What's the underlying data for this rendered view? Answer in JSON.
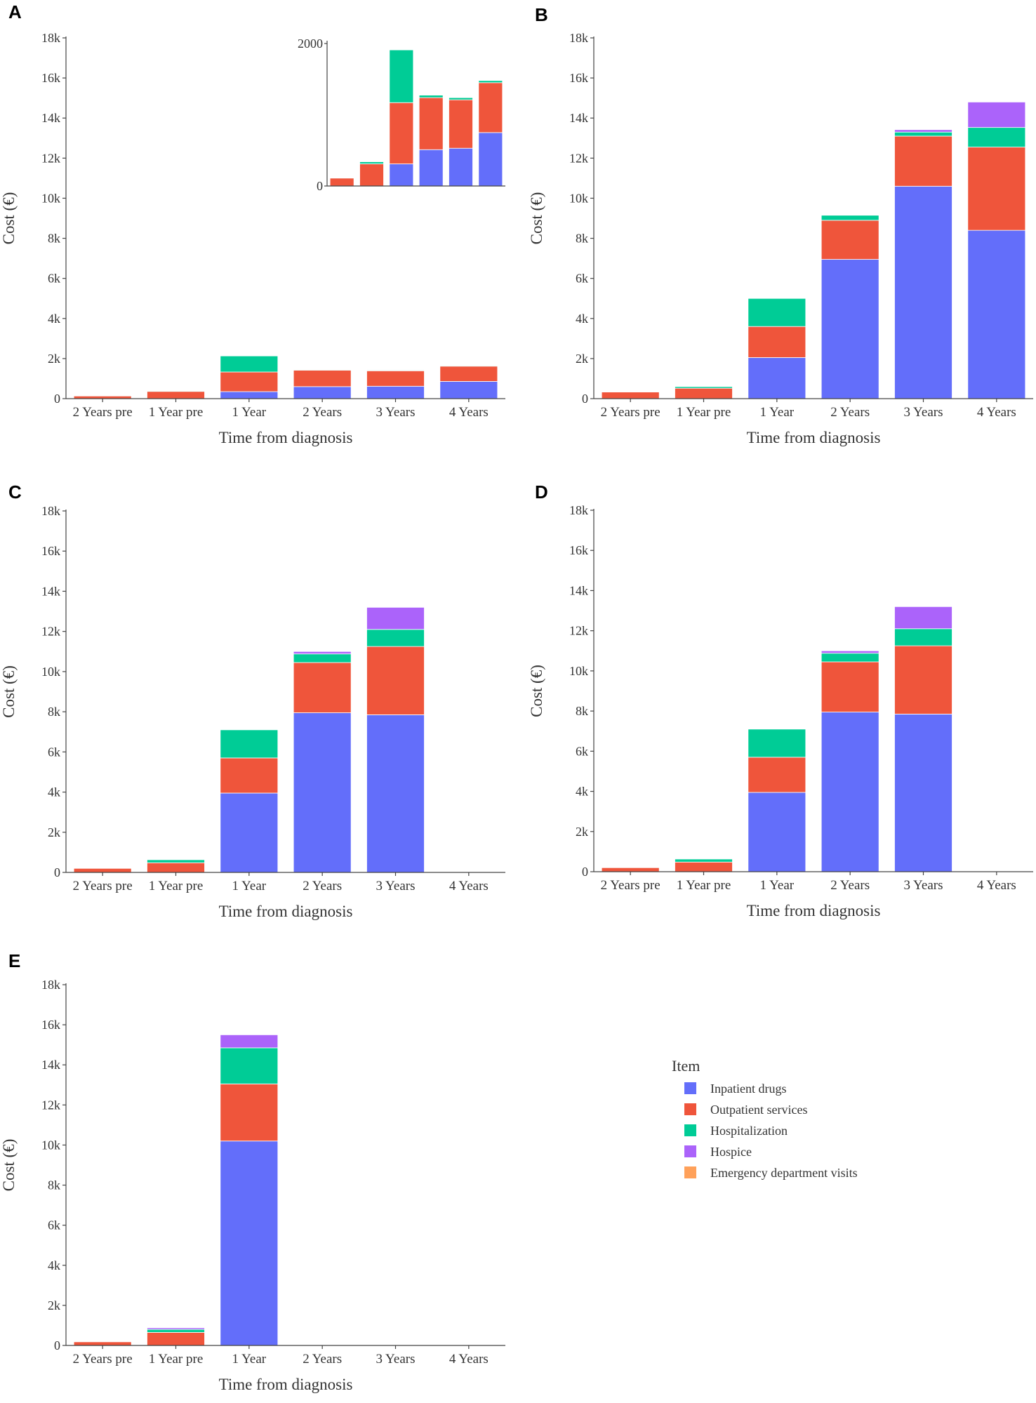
{
  "chart_data": [
    {
      "panel": "A",
      "type": "bar",
      "stacked": true,
      "categories": [
        "2 Years pre",
        "1 Year pre",
        "1 Year",
        "2 Years",
        "3 Years",
        "4 Years"
      ],
      "series": [
        {
          "name": "Inpatient drugs",
          "values": [
            0,
            0,
            350,
            600,
            620,
            860
          ]
        },
        {
          "name": "Outpatient services",
          "values": [
            130,
            360,
            980,
            820,
            770,
            760
          ]
        },
        {
          "name": "Hospitalization",
          "values": [
            0,
            30,
            800,
            30,
            30,
            30
          ]
        },
        {
          "name": "Hospice",
          "values": [
            0,
            0,
            0,
            0,
            0,
            0
          ]
        },
        {
          "name": "Emergency department visits",
          "values": [
            0,
            0,
            0,
            0,
            0,
            0
          ]
        }
      ],
      "xlabel": "Time from diagnosis",
      "ylabel": "Cost (€)",
      "ylim": [
        0,
        18000
      ],
      "yticks": [
        "0",
        "2k",
        "4k",
        "6k",
        "8k",
        "10k",
        "12k",
        "14k",
        "16k",
        "18k"
      ],
      "inset": {
        "ylim": [
          0,
          2000
        ],
        "yticks": [
          "0",
          "2000"
        ],
        "categories": [
          "2 Years pre",
          "1 Year pre",
          "1 Year",
          "2 Years",
          "3 Years",
          "4 Years"
        ],
        "series": [
          {
            "name": "Inpatient drugs",
            "values": [
              0,
              0,
              310,
              510,
              530,
              750
            ]
          },
          {
            "name": "Outpatient services",
            "values": [
              110,
              310,
              860,
              730,
              680,
              700
            ]
          },
          {
            "name": "Hospitalization",
            "values": [
              0,
              30,
              740,
              35,
              30,
              30
            ]
          },
          {
            "name": "Hospice",
            "values": [
              0,
              0,
              0,
              0,
              0,
              0
            ]
          },
          {
            "name": "Emergency department visits",
            "values": [
              0,
              0,
              0,
              0,
              0,
              0
            ]
          }
        ]
      }
    },
    {
      "panel": "B",
      "type": "bar",
      "stacked": true,
      "categories": [
        "2 Years pre",
        "1 Year pre",
        "1 Year",
        "2 Years",
        "3 Years",
        "4 Years"
      ],
      "series": [
        {
          "name": "Inpatient drugs",
          "values": [
            0,
            0,
            2050,
            6950,
            10600,
            8400
          ]
        },
        {
          "name": "Outpatient services",
          "values": [
            330,
            520,
            1550,
            1950,
            2500,
            4150
          ]
        },
        {
          "name": "Hospitalization",
          "values": [
            0,
            80,
            1400,
            250,
            200,
            980
          ]
        },
        {
          "name": "Hospice",
          "values": [
            0,
            0,
            0,
            0,
            120,
            1270
          ]
        },
        {
          "name": "Emergency department visits",
          "values": [
            0,
            0,
            0,
            0,
            0,
            0
          ]
        }
      ],
      "xlabel": "Time from diagnosis",
      "ylabel": "Cost (€)",
      "ylim": [
        0,
        18000
      ],
      "yticks": [
        "0",
        "2k",
        "4k",
        "6k",
        "8k",
        "10k",
        "12k",
        "14k",
        "16k",
        "18k"
      ]
    },
    {
      "panel": "C",
      "type": "bar",
      "stacked": true,
      "categories": [
        "2 Years pre",
        "1 Year pre",
        "1 Year",
        "2 Years",
        "3 Years",
        "4 Years"
      ],
      "series": [
        {
          "name": "Inpatient drugs",
          "values": [
            0,
            0,
            3950,
            7950,
            7850,
            0
          ]
        },
        {
          "name": "Outpatient services",
          "values": [
            200,
            480,
            1750,
            2500,
            3400,
            0
          ]
        },
        {
          "name": "Hospitalization",
          "values": [
            0,
            150,
            1400,
            430,
            850,
            0
          ]
        },
        {
          "name": "Hospice",
          "values": [
            0,
            0,
            0,
            120,
            1100,
            0
          ]
        },
        {
          "name": "Emergency department visits",
          "values": [
            0,
            0,
            0,
            0,
            0,
            0
          ]
        }
      ],
      "xlabel": "Time from diagnosis",
      "ylabel": "Cost (€)",
      "ylim": [
        0,
        18000
      ],
      "yticks": [
        "0",
        "2k",
        "4k",
        "6k",
        "8k",
        "10k",
        "12k",
        "14k",
        "16k",
        "18k"
      ]
    },
    {
      "panel": "D",
      "type": "bar",
      "stacked": true,
      "categories": [
        "2 Years pre",
        "1 Year pre",
        "1 Year",
        "2 Years",
        "3 Years",
        "4 Years"
      ],
      "series": [
        {
          "name": "Inpatient drugs",
          "values": [
            0,
            0,
            3950,
            7950,
            7850,
            0
          ]
        },
        {
          "name": "Outpatient services",
          "values": [
            200,
            480,
            1750,
            2500,
            3400,
            0
          ]
        },
        {
          "name": "Hospitalization",
          "values": [
            0,
            150,
            1400,
            430,
            850,
            0
          ]
        },
        {
          "name": "Hospice",
          "values": [
            0,
            0,
            0,
            120,
            1100,
            0
          ]
        },
        {
          "name": "Emergency department visits",
          "values": [
            0,
            0,
            0,
            0,
            0,
            0
          ]
        }
      ],
      "xlabel": "Time from diagnosis",
      "ylabel": "Cost (€)",
      "ylim": [
        0,
        18000
      ],
      "yticks": [
        "0",
        "2k",
        "4k",
        "6k",
        "8k",
        "10k",
        "12k",
        "14k",
        "16k",
        "18k"
      ]
    },
    {
      "panel": "E",
      "type": "bar",
      "stacked": true,
      "categories": [
        "2 Years pre",
        "1 Year pre",
        "1 Year",
        "2 Years",
        "3 Years",
        "4 Years"
      ],
      "series": [
        {
          "name": "Inpatient drugs",
          "values": [
            0,
            0,
            10200,
            0,
            0,
            0
          ]
        },
        {
          "name": "Outpatient services",
          "values": [
            180,
            650,
            2850,
            0,
            0,
            0
          ]
        },
        {
          "name": "Hospitalization",
          "values": [
            0,
            150,
            1800,
            0,
            0,
            0
          ]
        },
        {
          "name": "Hospice",
          "values": [
            0,
            80,
            650,
            0,
            0,
            0
          ]
        },
        {
          "name": "Emergency department visits",
          "values": [
            0,
            0,
            0,
            0,
            0,
            0
          ]
        }
      ],
      "xlabel": "Time from diagnosis",
      "ylabel": "Cost (€)",
      "ylim": [
        0,
        18000
      ],
      "yticks": [
        "0",
        "2k",
        "4k",
        "6k",
        "8k",
        "10k",
        "12k",
        "14k",
        "16k",
        "18k"
      ]
    }
  ],
  "legend": {
    "title": "Item",
    "items": [
      {
        "label": "Inpatient drugs",
        "color": "#636efa"
      },
      {
        "label": "Outpatient services",
        "color": "#ef553b"
      },
      {
        "label": "Hospitalization",
        "color": "#00cc96"
      },
      {
        "label": "Hospice",
        "color": "#ab63fa"
      },
      {
        "label": "Emergency department visits",
        "color": "#ffa15a"
      }
    ]
  }
}
